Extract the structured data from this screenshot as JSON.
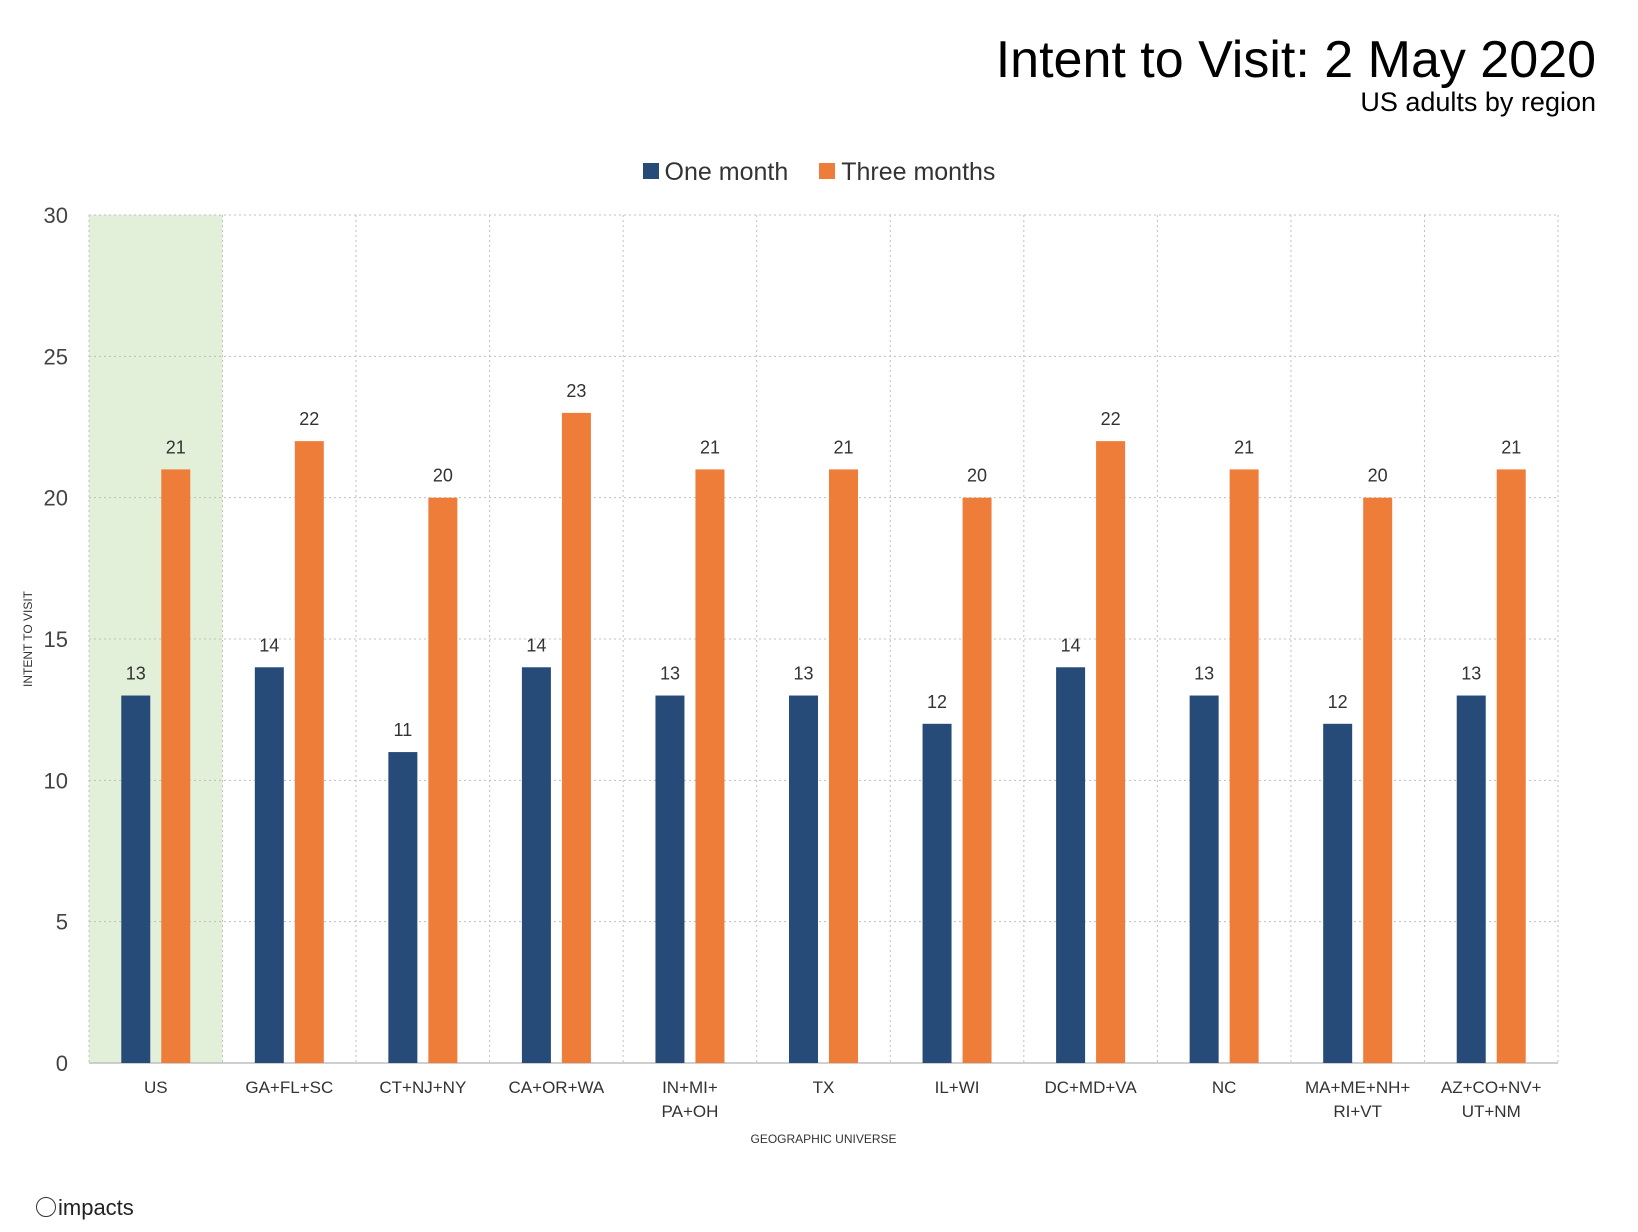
{
  "title": "Intent to Visit: 2 May 2020",
  "subtitle": "US adults by region",
  "logo_text": "impacts",
  "chart_data": {
    "type": "bar",
    "title": "Intent to Visit: 2 May 2020",
    "subtitle": "US adults by region",
    "xlabel": "GEOGRAPHIC UNIVERSE",
    "ylabel": "INTENT TO VISIT",
    "ylim": [
      0,
      30
    ],
    "yticks": [
      0,
      5,
      10,
      15,
      20,
      25,
      30
    ],
    "grid": true,
    "legend_position": "top",
    "highlighted_category": "US",
    "highlight_color": "#e2efd9",
    "categories": [
      "US",
      "GA+FL+SC",
      "CT+NJ+NY",
      "CA+OR+WA",
      "IN+MI+\nPA+OH",
      "TX",
      "IL+WI",
      "DC+MD+VA",
      "NC",
      "MA+ME+NH+\nRI+VT",
      "AZ+CO+NV+\nUT+NM"
    ],
    "series": [
      {
        "name": "One month",
        "color": "#264b78",
        "values": [
          13,
          14,
          11,
          14,
          13,
          13,
          12,
          14,
          13,
          12,
          13
        ]
      },
      {
        "name": "Three months",
        "color": "#ee7d3a",
        "values": [
          21,
          22,
          20,
          23,
          21,
          21,
          20,
          22,
          21,
          20,
          21
        ]
      }
    ]
  }
}
